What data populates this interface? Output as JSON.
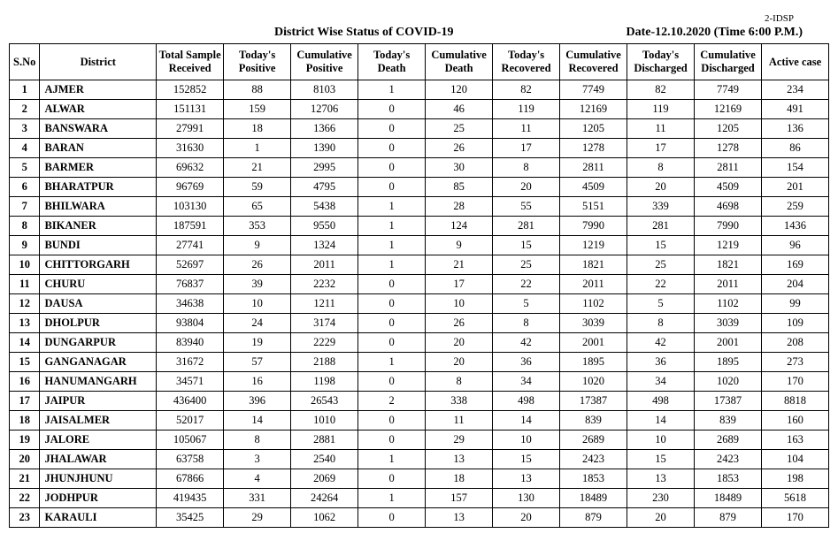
{
  "top_tag": "2-IDSP",
  "title": "District Wise Status of  COVID-19",
  "date_line": "Date-12.10.2020 (Time 6:00 P.M.)",
  "columns": [
    "S.No",
    "District",
    "Total Sample Received",
    "Today's Positive",
    "Cumulative Positive",
    "Today's Death",
    "Cumulative Death",
    "Today's Recovered",
    "Cumulative Recovered",
    "Today's Discharged",
    "Cumulative Discharged",
    "Active case"
  ],
  "rows": [
    {
      "sno": "1",
      "district": "AJMER",
      "tsr": "152852",
      "tp": "88",
      "cp": "8103",
      "td": "1",
      "cd": "120",
      "tr": "82",
      "cr": "7749",
      "tdis": "82",
      "cdis": "7749",
      "ac": "234"
    },
    {
      "sno": "2",
      "district": "ALWAR",
      "tsr": "151131",
      "tp": "159",
      "cp": "12706",
      "td": "0",
      "cd": "46",
      "tr": "119",
      "cr": "12169",
      "tdis": "119",
      "cdis": "12169",
      "ac": "491"
    },
    {
      "sno": "3",
      "district": "BANSWARA",
      "tsr": "27991",
      "tp": "18",
      "cp": "1366",
      "td": "0",
      "cd": "25",
      "tr": "11",
      "cr": "1205",
      "tdis": "11",
      "cdis": "1205",
      "ac": "136"
    },
    {
      "sno": "4",
      "district": "BARAN",
      "tsr": "31630",
      "tp": "1",
      "cp": "1390",
      "td": "0",
      "cd": "26",
      "tr": "17",
      "cr": "1278",
      "tdis": "17",
      "cdis": "1278",
      "ac": "86"
    },
    {
      "sno": "5",
      "district": "BARMER",
      "tsr": "69632",
      "tp": "21",
      "cp": "2995",
      "td": "0",
      "cd": "30",
      "tr": "8",
      "cr": "2811",
      "tdis": "8",
      "cdis": "2811",
      "ac": "154"
    },
    {
      "sno": "6",
      "district": "BHARATPUR",
      "tsr": "96769",
      "tp": "59",
      "cp": "4795",
      "td": "0",
      "cd": "85",
      "tr": "20",
      "cr": "4509",
      "tdis": "20",
      "cdis": "4509",
      "ac": "201"
    },
    {
      "sno": "7",
      "district": "BHILWARA",
      "tsr": "103130",
      "tp": "65",
      "cp": "5438",
      "td": "1",
      "cd": "28",
      "tr": "55",
      "cr": "5151",
      "tdis": "339",
      "cdis": "4698",
      "ac": "259"
    },
    {
      "sno": "8",
      "district": "BIKANER",
      "tsr": "187591",
      "tp": "353",
      "cp": "9550",
      "td": "1",
      "cd": "124",
      "tr": "281",
      "cr": "7990",
      "tdis": "281",
      "cdis": "7990",
      "ac": "1436"
    },
    {
      "sno": "9",
      "district": "BUNDI",
      "tsr": "27741",
      "tp": "9",
      "cp": "1324",
      "td": "1",
      "cd": "9",
      "tr": "15",
      "cr": "1219",
      "tdis": "15",
      "cdis": "1219",
      "ac": "96"
    },
    {
      "sno": "10",
      "district": "CHITTORGARH",
      "tsr": "52697",
      "tp": "26",
      "cp": "2011",
      "td": "1",
      "cd": "21",
      "tr": "25",
      "cr": "1821",
      "tdis": "25",
      "cdis": "1821",
      "ac": "169"
    },
    {
      "sno": "11",
      "district": "CHURU",
      "tsr": "76837",
      "tp": "39",
      "cp": "2232",
      "td": "0",
      "cd": "17",
      "tr": "22",
      "cr": "2011",
      "tdis": "22",
      "cdis": "2011",
      "ac": "204"
    },
    {
      "sno": "12",
      "district": "DAUSA",
      "tsr": "34638",
      "tp": "10",
      "cp": "1211",
      "td": "0",
      "cd": "10",
      "tr": "5",
      "cr": "1102",
      "tdis": "5",
      "cdis": "1102",
      "ac": "99"
    },
    {
      "sno": "13",
      "district": "DHOLPUR",
      "tsr": "93804",
      "tp": "24",
      "cp": "3174",
      "td": "0",
      "cd": "26",
      "tr": "8",
      "cr": "3039",
      "tdis": "8",
      "cdis": "3039",
      "ac": "109"
    },
    {
      "sno": "14",
      "district": "DUNGARPUR",
      "tsr": "83940",
      "tp": "19",
      "cp": "2229",
      "td": "0",
      "cd": "20",
      "tr": "42",
      "cr": "2001",
      "tdis": "42",
      "cdis": "2001",
      "ac": "208"
    },
    {
      "sno": "15",
      "district": "GANGANAGAR",
      "tsr": "31672",
      "tp": "57",
      "cp": "2188",
      "td": "1",
      "cd": "20",
      "tr": "36",
      "cr": "1895",
      "tdis": "36",
      "cdis": "1895",
      "ac": "273"
    },
    {
      "sno": "16",
      "district": "HANUMANGARH",
      "tsr": "34571",
      "tp": "16",
      "cp": "1198",
      "td": "0",
      "cd": "8",
      "tr": "34",
      "cr": "1020",
      "tdis": "34",
      "cdis": "1020",
      "ac": "170"
    },
    {
      "sno": "17",
      "district": "JAIPUR",
      "tsr": "436400",
      "tp": "396",
      "cp": "26543",
      "td": "2",
      "cd": "338",
      "tr": "498",
      "cr": "17387",
      "tdis": "498",
      "cdis": "17387",
      "ac": "8818"
    },
    {
      "sno": "18",
      "district": "JAISALMER",
      "tsr": "52017",
      "tp": "14",
      "cp": "1010",
      "td": "0",
      "cd": "11",
      "tr": "14",
      "cr": "839",
      "tdis": "14",
      "cdis": "839",
      "ac": "160"
    },
    {
      "sno": "19",
      "district": "JALORE",
      "tsr": "105067",
      "tp": "8",
      "cp": "2881",
      "td": "0",
      "cd": "29",
      "tr": "10",
      "cr": "2689",
      "tdis": "10",
      "cdis": "2689",
      "ac": "163"
    },
    {
      "sno": "20",
      "district": "JHALAWAR",
      "tsr": "63758",
      "tp": "3",
      "cp": "2540",
      "td": "1",
      "cd": "13",
      "tr": "15",
      "cr": "2423",
      "tdis": "15",
      "cdis": "2423",
      "ac": "104"
    },
    {
      "sno": "21",
      "district": "JHUNJHUNU",
      "tsr": "67866",
      "tp": "4",
      "cp": "2069",
      "td": "0",
      "cd": "18",
      "tr": "13",
      "cr": "1853",
      "tdis": "13",
      "cdis": "1853",
      "ac": "198"
    },
    {
      "sno": "22",
      "district": "JODHPUR",
      "tsr": "419435",
      "tp": "331",
      "cp": "24264",
      "td": "1",
      "cd": "157",
      "tr": "130",
      "cr": "18489",
      "tdis": "230",
      "cdis": "18489",
      "ac": "5618"
    },
    {
      "sno": "23",
      "district": "KARAULI",
      "tsr": "35425",
      "tp": "29",
      "cp": "1062",
      "td": "0",
      "cd": "13",
      "tr": "20",
      "cr": "879",
      "tdis": "20",
      "cdis": "879",
      "ac": "170"
    }
  ]
}
